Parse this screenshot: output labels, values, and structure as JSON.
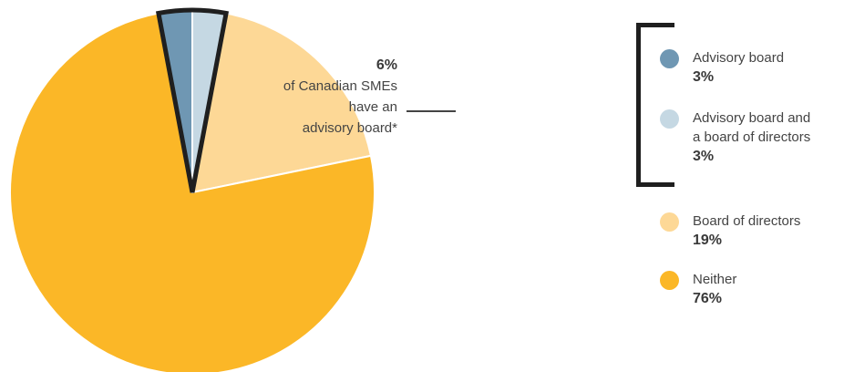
{
  "chart_data": {
    "type": "pie",
    "categories": [
      "Advisory board",
      "Advisory board and a board of directors",
      "Board of directors",
      "Neither"
    ],
    "values": [
      3,
      3,
      19,
      76
    ],
    "value_labels": [
      "3%",
      "3%",
      "19%",
      "76%"
    ],
    "colors": [
      "#6f97b3",
      "#c5d8e3",
      "#fdd896",
      "#fbb727"
    ],
    "highlight": {
      "slices": [
        0,
        1
      ],
      "outline_color": "#1f1f1f",
      "callout_value": "6%",
      "callout_text": "of Canadian SMEs have an advisory board*"
    },
    "legend_placement": "right"
  },
  "callout": {
    "pct": "6%",
    "lines": [
      "of Canadian SMEs",
      "have an",
      "advisory board*"
    ]
  },
  "legend": [
    {
      "label_lines": [
        "Advisory board"
      ],
      "value": "3%",
      "color": "#6f97b3"
    },
    {
      "label_lines": [
        "Advisory board and",
        "a board of directors"
      ],
      "value": "3%",
      "color": "#c5d8e3"
    },
    {
      "label_lines": [
        "Board of directors"
      ],
      "value": "19%",
      "color": "#fdd896"
    },
    {
      "label_lines": [
        "Neither"
      ],
      "value": "76%",
      "color": "#fbb727"
    }
  ]
}
